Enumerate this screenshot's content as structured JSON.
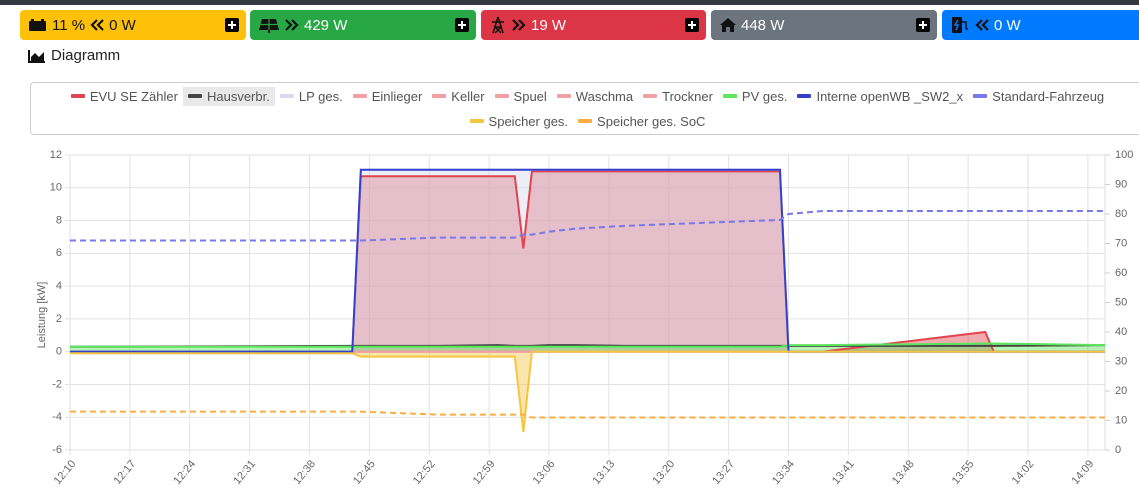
{
  "tiles": [
    [
      "11 %",
      "0 W"
    ],
    [
      "429 W"
    ],
    [
      "19 W"
    ],
    [
      "448 W"
    ],
    [
      "0 W"
    ]
  ],
  "section_title": "Diagramm",
  "chart_data": {
    "type": "line",
    "y_label": "Leistung [kW]",
    "x": [
      "12:10",
      "12:43",
      "12:44",
      "12:53",
      "13:00",
      "13:02",
      "13:03",
      "13:04",
      "13:06",
      "13:09",
      "13:15",
      "13:24",
      "13:33",
      "13:34",
      "13:38",
      "13:57",
      "13:58",
      "14:11"
    ],
    "xlim": [
      "12:10",
      "14:11"
    ],
    "xticks": [
      "12:10",
      "12:17",
      "12:24",
      "12:31",
      "12:38",
      "12:45",
      "12:52",
      "12:59",
      "13:06",
      "13:13",
      "13:20",
      "13:27",
      "13:34",
      "13:41",
      "13:48",
      "13:55",
      "14:02",
      "14:09"
    ],
    "ylim": [
      -6,
      12
    ],
    "yticks": [
      -6,
      -4,
      -2,
      0,
      2,
      4,
      6,
      8,
      10,
      12
    ],
    "y2lim": [
      0,
      100
    ],
    "y2ticks": [
      0,
      10,
      20,
      30,
      40,
      50,
      60,
      70,
      80,
      90,
      100
    ],
    "grid": true,
    "series": [
      {
        "name": "EVU SE Zähler",
        "color": "#e0444c",
        "fill": true,
        "values": [
          0,
          0,
          10.7,
          10.7,
          10.7,
          10.7,
          6.3,
          11.0,
          11.0,
          11.0,
          11.0,
          11.0,
          11.0,
          0,
          0,
          1.2,
          0,
          0
        ]
      },
      {
        "name": "Hausverbr.",
        "color": "#444444",
        "values": [
          0.3,
          0.35,
          0.35,
          0.35,
          0.4,
          0.35,
          0.35,
          0.35,
          0.4,
          0.4,
          0.35,
          0.35,
          0.35,
          0.35,
          0.35,
          0.35,
          0.35,
          0.4
        ]
      },
      {
        "name": "LP ges.",
        "color": "#d8d8ee",
        "fill": true,
        "values": [
          0,
          0,
          11.1,
          11.1,
          11.1,
          11.1,
          11.1,
          11.1,
          11.1,
          11.1,
          11.1,
          11.1,
          11.1,
          0,
          0,
          0,
          0,
          0
        ]
      },
      {
        "name": "Einlieger",
        "color": "#f0a0a4",
        "values": [
          0,
          0,
          0,
          0,
          0,
          0,
          0,
          0,
          0,
          0,
          0,
          0,
          0,
          0,
          0,
          0,
          0,
          0
        ]
      },
      {
        "name": "Keller",
        "color": "#f0a0a4",
        "values": [
          0,
          0,
          0,
          0,
          0,
          0,
          0,
          0,
          0,
          0,
          0,
          0,
          0,
          0,
          0,
          0,
          0,
          0
        ]
      },
      {
        "name": "Spuel",
        "color": "#f0a0a4",
        "values": [
          0,
          0,
          0,
          0,
          0,
          0,
          0,
          0,
          0,
          0,
          0,
          0,
          0,
          0,
          0,
          0,
          0,
          0
        ]
      },
      {
        "name": "Waschma",
        "color": "#f0a0a4",
        "values": [
          0,
          0,
          0,
          0,
          0,
          0,
          0,
          0,
          0,
          0,
          0,
          0,
          0,
          0,
          0,
          0,
          0,
          0
        ]
      },
      {
        "name": "Trockner",
        "color": "#f0a0a4",
        "values": [
          0,
          0,
          0,
          0,
          0,
          0,
          0,
          0,
          0,
          0,
          0,
          0,
          0,
          0,
          0,
          0,
          0,
          0
        ]
      },
      {
        "name": "PV ges.",
        "color": "#5ee55e",
        "fill": true,
        "values": [
          0.3,
          0.3,
          0.3,
          0.3,
          0.3,
          0.3,
          0.3,
          0.3,
          0.3,
          0.3,
          0.3,
          0.3,
          0.3,
          0.4,
          0.4,
          0.5,
          0.5,
          0.4
        ]
      },
      {
        "name": "Interne openWB _SW2_x",
        "color": "#3340cc",
        "values": [
          0,
          0,
          11.1,
          11.1,
          11.1,
          11.1,
          11.1,
          11.1,
          11.1,
          11.1,
          11.1,
          11.1,
          11.1,
          0,
          0,
          0,
          0,
          0
        ]
      },
      {
        "name": "Standard-Fahrzeug",
        "color": "#7777ee",
        "axis": "y2",
        "dashed": true,
        "values": [
          71,
          71,
          71,
          72,
          72,
          72,
          73,
          73,
          74,
          75,
          76,
          77,
          78,
          80,
          81,
          81,
          81,
          81
        ]
      },
      {
        "name": "Speicher ges.",
        "color": "#f5c542",
        "fill": true,
        "values": [
          -0.1,
          -0.1,
          -0.3,
          -0.3,
          -0.3,
          -0.3,
          -4.9,
          0,
          0,
          0,
          0,
          0,
          0,
          0,
          0,
          0,
          0,
          0
        ]
      },
      {
        "name": "Speicher ges. SoC",
        "color": "#ffac40",
        "axis": "y2",
        "dashed": true,
        "values": [
          13,
          13,
          13,
          12,
          12,
          12,
          12,
          11,
          11,
          11,
          11,
          11,
          11,
          11,
          11,
          11,
          11,
          11
        ]
      }
    ]
  }
}
